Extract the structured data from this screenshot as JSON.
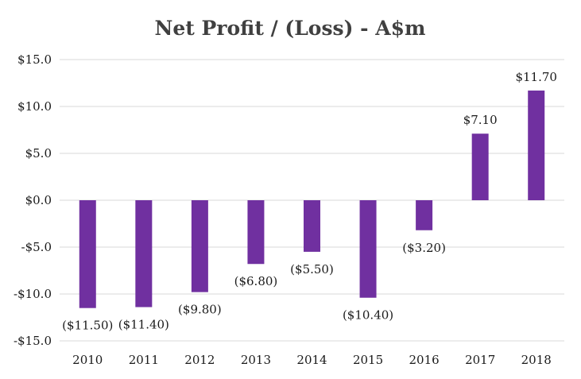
{
  "chart_data": {
    "type": "bar",
    "title": "Net Profit / (Loss) - A$m",
    "xlabel": "",
    "ylabel": "",
    "categories": [
      "2010",
      "2011",
      "2012",
      "2013",
      "2014",
      "2015",
      "2016",
      "2017",
      "2018"
    ],
    "values": [
      -11.5,
      -11.4,
      -9.8,
      -6.8,
      -5.5,
      -10.4,
      -3.2,
      7.1,
      11.7
    ],
    "data_labels": [
      "($11.50)",
      "($11.40)",
      "($9.80)",
      "($6.80)",
      "($5.50)",
      "($10.40)",
      "($3.20)",
      "$7.10",
      "$11.70"
    ],
    "ylim": [
      -15,
      15
    ],
    "yticks": [
      15,
      10,
      5,
      0,
      -5,
      -10,
      -15
    ],
    "ytick_labels": [
      "$15.0",
      "$10.0",
      "$5.0",
      "$0.0",
      "-$5.0",
      "-$10.0",
      "-$15.0"
    ],
    "bar_color": "#7030a0",
    "grid": true,
    "legend": "none"
  }
}
